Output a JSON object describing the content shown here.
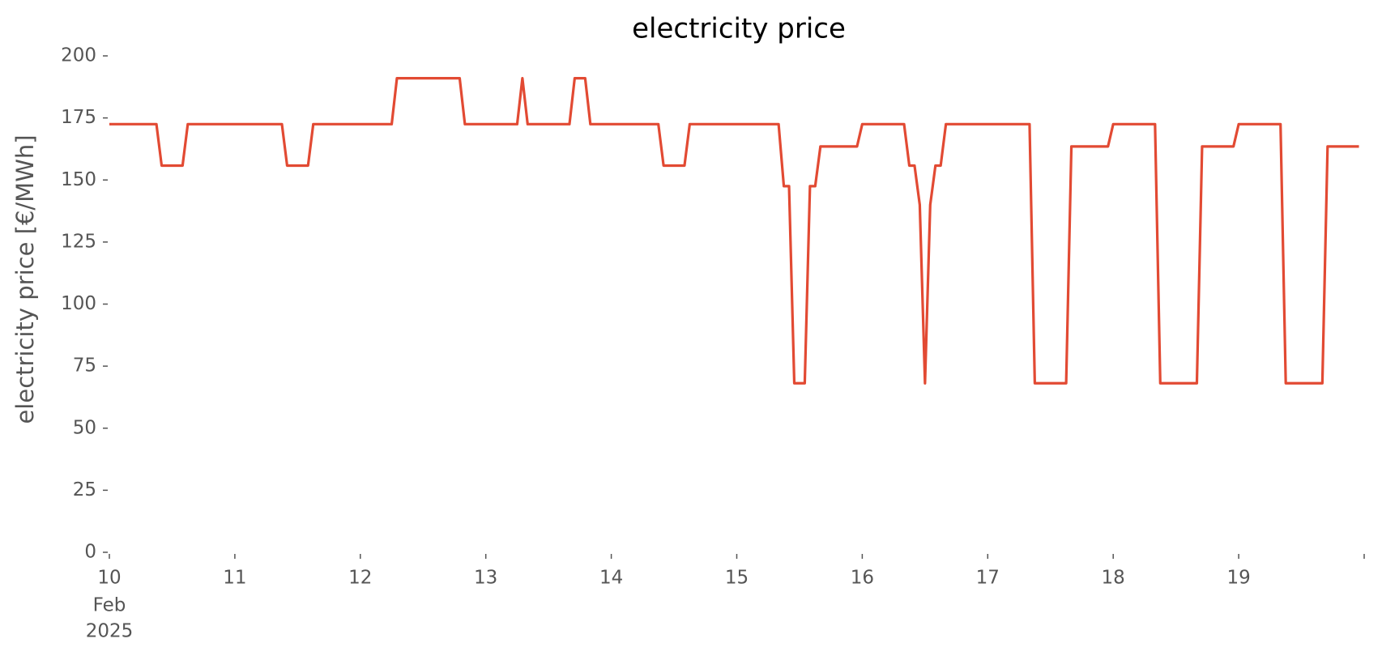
{
  "chart_data": {
    "type": "line",
    "title": "electricity price",
    "ylabel": "electricity price [€/MWh]",
    "x_tick_sublabels": [
      "Feb",
      "2025"
    ],
    "series": [
      {
        "name": "electricity price",
        "color": "#e24a33",
        "x": [
          0,
          9,
          10,
          14,
          15,
          33,
          34,
          38,
          39,
          54,
          55,
          67,
          68,
          78,
          79,
          80,
          88,
          89,
          91,
          92,
          105,
          106,
          110,
          111,
          128,
          129,
          130,
          131,
          133,
          134,
          135,
          136,
          143,
          144,
          152,
          153,
          154,
          155,
          156,
          157,
          158,
          159,
          160,
          176,
          177,
          183,
          184,
          191,
          192,
          200,
          201,
          208,
          209,
          215,
          216,
          224,
          225,
          232,
          233,
          239
        ],
        "values": [
          172.5,
          172.5,
          155.8,
          155.8,
          172.5,
          172.5,
          155.8,
          155.8,
          172.5,
          172.5,
          191,
          191,
          172.5,
          172.5,
          191,
          172.5,
          172.5,
          191,
          191,
          172.5,
          172.5,
          155.8,
          155.8,
          172.5,
          172.5,
          147.5,
          147.5,
          68.1,
          68.1,
          147.5,
          147.5,
          163.5,
          163.5,
          172.5,
          172.5,
          155.8,
          155.8,
          140,
          68.1,
          140,
          155.8,
          155.8,
          172.5,
          172.5,
          68.1,
          68.1,
          163.5,
          163.5,
          172.5,
          172.5,
          68.1,
          68.1,
          163.5,
          163.5,
          172.5,
          172.5,
          68.1,
          68.1,
          163.5,
          163.5
        ]
      }
    ],
    "xlim": [
      0,
      240
    ],
    "xticks": [
      {
        "value": 0,
        "label": "10"
      },
      {
        "value": 24,
        "label": "11"
      },
      {
        "value": 48,
        "label": "12"
      },
      {
        "value": 72,
        "label": "13"
      },
      {
        "value": 96,
        "label": "14"
      },
      {
        "value": 120,
        "label": "15"
      },
      {
        "value": 144,
        "label": "16"
      },
      {
        "value": 168,
        "label": "17"
      },
      {
        "value": 192,
        "label": "18"
      },
      {
        "value": 216,
        "label": "19"
      }
    ],
    "ylim": [
      0,
      200
    ],
    "yticks": [
      0,
      25,
      50,
      75,
      100,
      125,
      150,
      175,
      200
    ],
    "grid": false
  }
}
